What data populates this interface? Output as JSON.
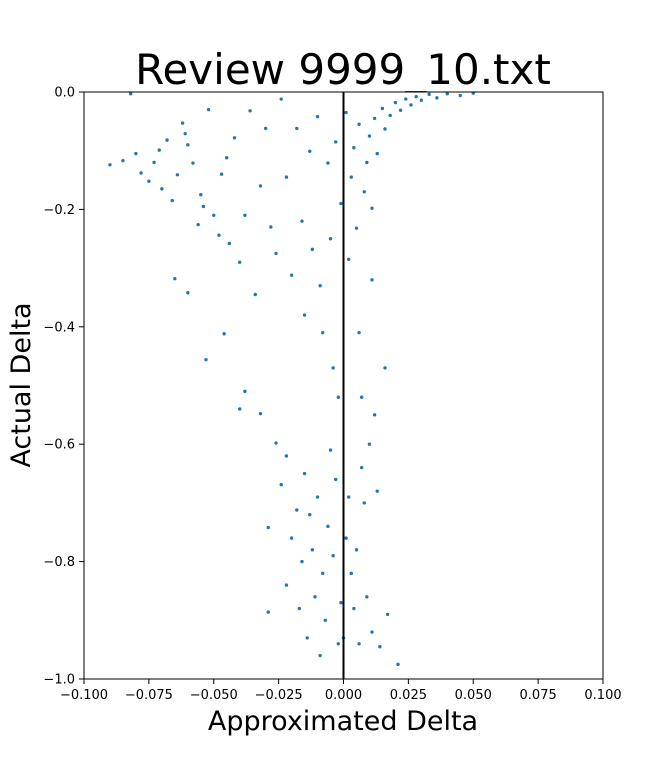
{
  "chart_data": {
    "type": "scatter",
    "title": "Review 9999_10.txt",
    "xlabel": "Approximated Delta",
    "ylabel": "Actual Delta",
    "xlim": [
      -0.1,
      0.1
    ],
    "ylim": [
      -1.0,
      0.0
    ],
    "xticks": [
      -0.1,
      -0.075,
      -0.05,
      -0.025,
      0.0,
      0.025,
      0.05,
      0.075,
      0.1
    ],
    "xtick_labels": [
      "−0.100",
      "−0.075",
      "−0.050",
      "−0.025",
      "0.000",
      "0.025",
      "0.050",
      "0.075",
      "0.100"
    ],
    "yticks": [
      0.0,
      -0.2,
      -0.4,
      -0.6,
      -0.8,
      -1.0
    ],
    "ytick_labels": [
      "0.0",
      "−0.2",
      "−0.4",
      "−0.6",
      "−0.8",
      "−1.0"
    ],
    "reference_line": {
      "orientation": "vertical",
      "x": 0.0,
      "color": "#000000"
    },
    "grid": false,
    "legend": "none",
    "marker_color": "#1f77b4",
    "series": [
      {
        "points": [
          [
            -0.09,
            -0.124
          ],
          [
            -0.085,
            -0.117
          ],
          [
            -0.082,
            -0.003
          ],
          [
            -0.08,
            -0.105
          ],
          [
            -0.078,
            -0.138
          ],
          [
            -0.075,
            -0.152
          ],
          [
            -0.073,
            -0.12
          ],
          [
            -0.071,
            -0.099
          ],
          [
            -0.07,
            -0.165
          ],
          [
            -0.068,
            -0.082
          ],
          [
            -0.066,
            -0.185
          ],
          [
            -0.064,
            -0.141
          ],
          [
            -0.062,
            -0.053
          ],
          [
            -0.061,
            -0.071
          ],
          [
            -0.06,
            -0.09
          ],
          [
            -0.058,
            -0.121
          ],
          [
            -0.056,
            -0.226
          ],
          [
            -0.055,
            -0.175
          ],
          [
            -0.054,
            -0.195
          ],
          [
            -0.052,
            -0.03
          ],
          [
            -0.05,
            -0.21
          ],
          [
            -0.048,
            -0.244
          ],
          [
            -0.047,
            -0.14
          ],
          [
            -0.045,
            -0.112
          ],
          [
            -0.044,
            -0.258
          ],
          [
            -0.042,
            -0.078
          ],
          [
            -0.04,
            -0.29
          ],
          [
            -0.038,
            -0.21
          ],
          [
            -0.036,
            -0.032
          ],
          [
            -0.034,
            -0.345
          ],
          [
            -0.032,
            -0.16
          ],
          [
            -0.03,
            -0.062
          ],
          [
            -0.028,
            -0.23
          ],
          [
            -0.026,
            -0.275
          ],
          [
            -0.024,
            -0.012
          ],
          [
            -0.022,
            -0.145
          ],
          [
            -0.02,
            -0.312
          ],
          [
            -0.018,
            -0.062
          ],
          [
            -0.016,
            -0.22
          ],
          [
            -0.015,
            -0.38
          ],
          [
            -0.013,
            -0.101
          ],
          [
            -0.012,
            -0.268
          ],
          [
            -0.01,
            -0.042
          ],
          [
            -0.009,
            -0.33
          ],
          [
            -0.008,
            -0.41
          ],
          [
            -0.006,
            -0.121
          ],
          [
            -0.005,
            -0.25
          ],
          [
            -0.004,
            -0.47
          ],
          [
            -0.003,
            -0.085
          ],
          [
            -0.002,
            -0.52
          ],
          [
            -0.001,
            -0.19
          ],
          [
            0.001,
            -0.035
          ],
          [
            0.002,
            -0.285
          ],
          [
            0.003,
            -0.145
          ],
          [
            0.004,
            -0.095
          ],
          [
            0.005,
            -0.232
          ],
          [
            0.006,
            -0.055
          ],
          [
            0.008,
            -0.17
          ],
          [
            0.009,
            -0.12
          ],
          [
            0.01,
            -0.075
          ],
          [
            0.011,
            -0.198
          ],
          [
            0.012,
            -0.045
          ],
          [
            0.013,
            -0.105
          ],
          [
            0.015,
            -0.028
          ],
          [
            0.016,
            -0.063
          ],
          [
            0.018,
            -0.04
          ],
          [
            0.02,
            -0.018
          ],
          [
            0.022,
            -0.031
          ],
          [
            0.024,
            -0.012
          ],
          [
            0.026,
            -0.022
          ],
          [
            0.028,
            -0.008
          ],
          [
            0.03,
            -0.014
          ],
          [
            0.033,
            -0.004
          ],
          [
            0.036,
            -0.01
          ],
          [
            0.04,
            -0.003
          ],
          [
            0.045,
            -0.006
          ],
          [
            0.05,
            -0.002
          ],
          [
            -0.065,
            -0.318
          ],
          [
            -0.06,
            -0.342
          ],
          [
            -0.053,
            -0.456
          ],
          [
            -0.046,
            -0.412
          ],
          [
            -0.04,
            -0.54
          ],
          [
            -0.038,
            -0.51
          ],
          [
            -0.032,
            -0.548
          ],
          [
            -0.029,
            -0.742
          ],
          [
            -0.029,
            -0.886
          ],
          [
            -0.026,
            -0.598
          ],
          [
            -0.024,
            -0.669
          ],
          [
            -0.022,
            -0.62
          ],
          [
            -0.022,
            -0.84
          ],
          [
            -0.02,
            -0.76
          ],
          [
            -0.018,
            -0.712
          ],
          [
            -0.017,
            -0.88
          ],
          [
            -0.016,
            -0.8
          ],
          [
            -0.015,
            -0.65
          ],
          [
            -0.014,
            -0.93
          ],
          [
            -0.013,
            -0.72
          ],
          [
            -0.012,
            -0.78
          ],
          [
            -0.011,
            -0.86
          ],
          [
            -0.01,
            -0.69
          ],
          [
            -0.009,
            -0.96
          ],
          [
            -0.008,
            -0.82
          ],
          [
            -0.007,
            -0.9
          ],
          [
            -0.006,
            -0.74
          ],
          [
            -0.005,
            -0.61
          ],
          [
            -0.004,
            -0.79
          ],
          [
            -0.003,
            -0.66
          ],
          [
            -0.002,
            -0.94
          ],
          [
            -0.001,
            -0.87
          ],
          [
            0.0,
            -0.93
          ],
          [
            0.001,
            -0.76
          ],
          [
            0.002,
            -0.69
          ],
          [
            0.003,
            -0.82
          ],
          [
            0.004,
            -0.88
          ],
          [
            0.005,
            -0.78
          ],
          [
            0.006,
            -0.94
          ],
          [
            0.007,
            -0.64
          ],
          [
            0.008,
            -0.7
          ],
          [
            0.009,
            -0.86
          ],
          [
            0.01,
            -0.6
          ],
          [
            0.011,
            -0.92
          ],
          [
            0.012,
            -0.55
          ],
          [
            0.014,
            -0.945
          ],
          [
            0.017,
            -0.89
          ],
          [
            0.021,
            -0.975
          ],
          [
            0.013,
            -0.68
          ],
          [
            0.016,
            -0.47
          ],
          [
            0.011,
            -0.32
          ],
          [
            0.007,
            -0.52
          ],
          [
            0.006,
            -0.41
          ]
        ]
      }
    ]
  }
}
